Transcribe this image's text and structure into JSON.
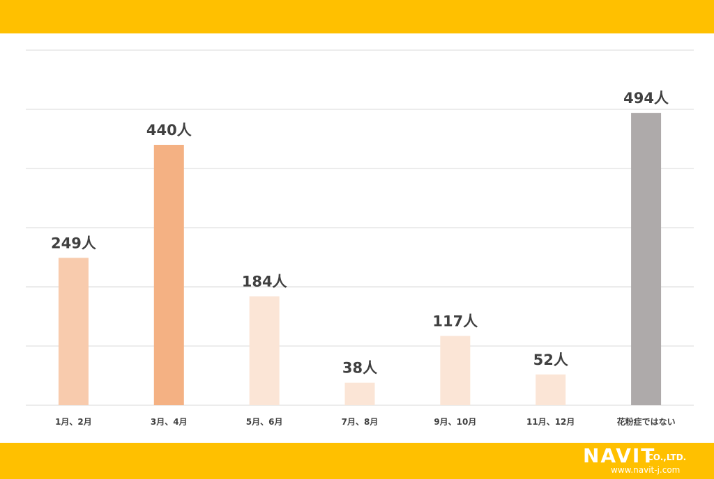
{
  "colors": {
    "band": "#FFC000",
    "grid": "#D9D9D9",
    "axis": "#D9D9D9",
    "value_label": "#404040",
    "tick_label": "#404040"
  },
  "logo": {
    "brand": "NAVIT",
    "suffix": "CO.,LTD.",
    "url": "www.navit-j.com"
  },
  "chart_data": {
    "type": "bar",
    "categories": [
      "1月、2月",
      "3月、4月",
      "5月、6月",
      "7月、8月",
      "9月、10月",
      "11月、12月",
      "花粉症ではない"
    ],
    "values": [
      249,
      440,
      184,
      38,
      117,
      52,
      494
    ],
    "value_labels": [
      "249人",
      "440人",
      "184人",
      "38人",
      "117人",
      "52人",
      "494人"
    ],
    "bar_colors": [
      "#F8CBAD",
      "#F4B183",
      "#FBE5D6",
      "#FBE5D6",
      "#FBE5D6",
      "#FBE5D6",
      "#AEAAAA"
    ],
    "ylim": [
      0,
      600
    ],
    "grid": true,
    "title": "",
    "xlabel": "",
    "ylabel": ""
  }
}
